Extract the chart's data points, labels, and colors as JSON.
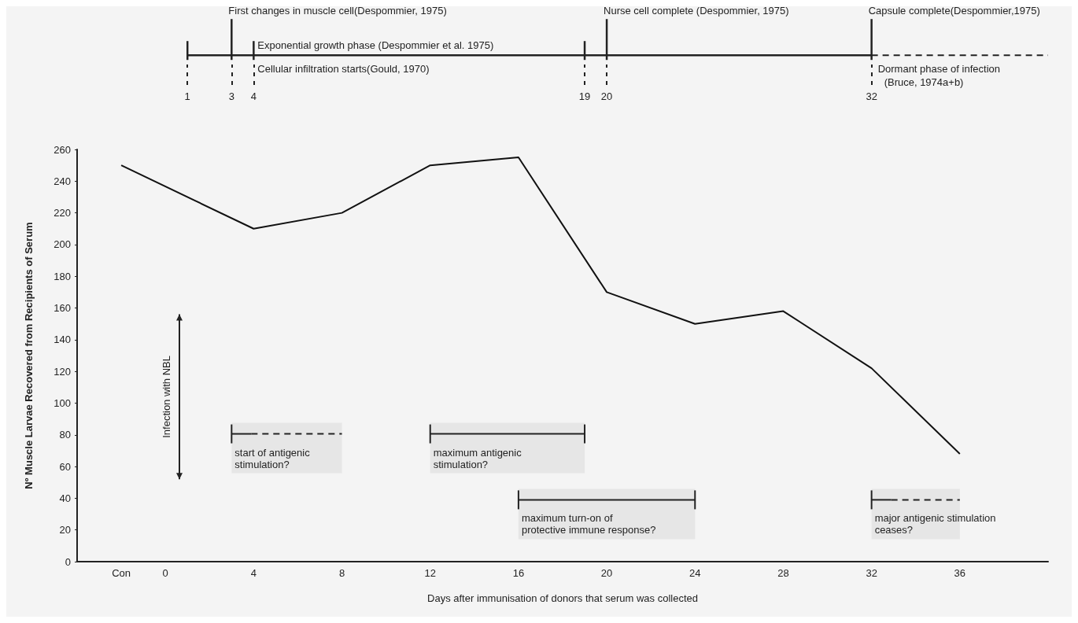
{
  "chart_data": {
    "type": "line",
    "xlabel": "Days after immunisation of donors that serum was collected",
    "ylabel": "Nº Muscle Larvae Recovered from Recipients of Serum",
    "x": [
      -2,
      4,
      8,
      12,
      16,
      20,
      24,
      28,
      32,
      36
    ],
    "values": [
      250,
      210,
      220,
      250,
      255,
      170,
      150,
      158,
      122,
      68
    ],
    "color": "#111111",
    "marker": "none",
    "line_style": "solid",
    "xlim": [
      -4,
      40
    ],
    "xticks": [
      {
        "value": -2,
        "label": "Con"
      },
      0,
      4,
      8,
      12,
      16,
      20,
      24,
      28,
      32,
      36
    ],
    "ylim": [
      0,
      260
    ],
    "yticks": [
      0,
      20,
      40,
      60,
      80,
      100,
      120,
      140,
      160,
      180,
      200,
      220,
      240,
      260
    ],
    "x2lim": [
      -4,
      40
    ],
    "x2ticks": [
      1,
      3,
      4,
      19,
      20,
      32
    ],
    "annotations": [
      "First changes in muscle cell(Despommier, 1975)",
      "Exponential growth phase (Despommier et al. 1975)",
      "Cellular infiltration starts(Gould, 1970)",
      "Nurse cell complete (Despommier, 1975)",
      "Capsule complete(Despommier,1975)",
      "Dormant phase of infection (Bruce, 1974a+b)",
      "Infection with NBL"
    ],
    "bands": [
      {
        "axis": "x",
        "from": 3,
        "to": 8,
        "label": "start of antigenic stimulation?"
      },
      {
        "axis": "x",
        "from": 12,
        "to": 19,
        "label": "maximum antigenic stimulation?"
      },
      {
        "axis": "x",
        "from": 16,
        "to": 24,
        "label": "maximum turn-on of protective immune response?"
      },
      {
        "axis": "x",
        "from": 32,
        "to": 36,
        "label": "major antigenic stimulation ceases?"
      }
    ]
  }
}
